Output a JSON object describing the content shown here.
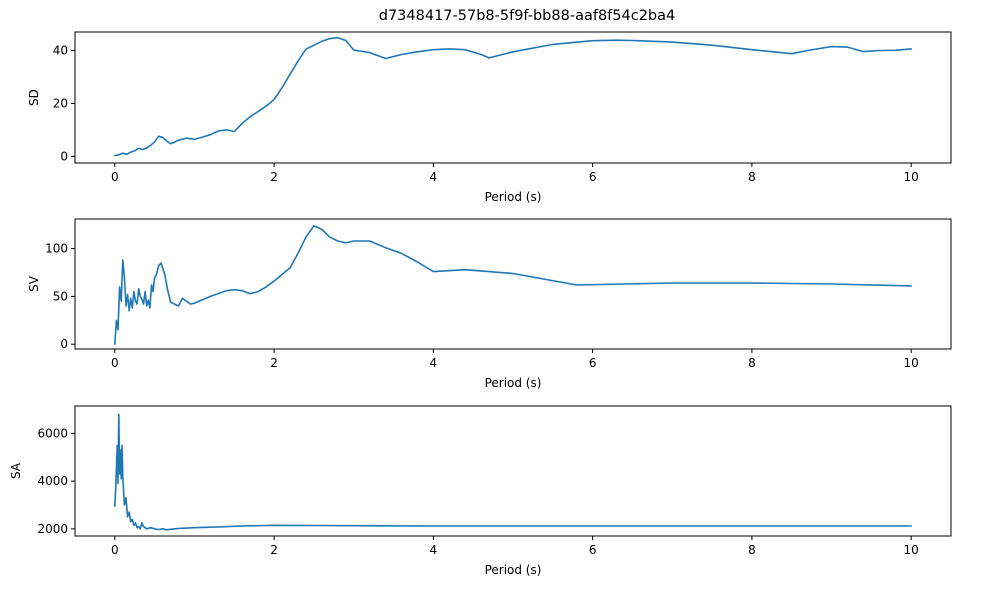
{
  "figure": {
    "title": "d7348417-57b8-5f9f-bb88-aaf8f54c2ba4"
  },
  "colors": {
    "line": "#1f77b4"
  },
  "chart_data": [
    {
      "type": "line",
      "ylabel": "SD",
      "xlabel": "Period (s)",
      "xlim": [
        -0.5,
        10.5
      ],
      "ylim": [
        -2.5,
        47
      ],
      "xticks": [
        0,
        2,
        4,
        6,
        8,
        10
      ],
      "yticks": [
        0,
        20,
        40
      ],
      "series": [
        {
          "x": [
            0,
            0.05,
            0.1,
            0.15,
            0.2,
            0.25,
            0.3,
            0.35,
            0.4,
            0.45,
            0.5,
            0.55,
            0.6,
            0.65,
            0.7,
            0.75,
            0.8,
            0.9,
            1.0,
            1.1,
            1.2,
            1.3,
            1.4,
            1.5,
            1.6,
            1.7,
            1.8,
            1.9,
            2.0,
            2.1,
            2.2,
            2.3,
            2.4,
            2.5,
            2.6,
            2.7,
            2.8,
            2.9,
            3.0,
            3.2,
            3.4,
            3.6,
            3.8,
            4.0,
            4.2,
            4.4,
            4.6,
            4.7,
            5.0,
            5.5,
            6.0,
            6.3,
            6.5,
            7.0,
            7.5,
            8.0,
            8.5,
            8.7,
            9.0,
            9.2,
            9.4,
            9.6,
            9.8,
            10.0
          ],
          "y": [
            0.3,
            0.6,
            1.2,
            0.8,
            1.6,
            2.1,
            3.0,
            2.6,
            3.2,
            4.2,
            5.5,
            7.6,
            7.2,
            5.8,
            4.8,
            5.4,
            6.1,
            6.9,
            6.4,
            7.3,
            8.2,
            9.6,
            10.0,
            9.4,
            12.5,
            15.0,
            17.0,
            19.0,
            21.5,
            26.0,
            31.0,
            36.0,
            40.5,
            42.0,
            43.5,
            44.5,
            44.8,
            43.8,
            40.2,
            39.2,
            37.0,
            38.5,
            39.5,
            40.3,
            40.6,
            40.3,
            38.5,
            37.2,
            39.5,
            42.3,
            43.7,
            43.9,
            43.8,
            43.2,
            42.0,
            40.3,
            38.8,
            40.0,
            41.5,
            41.3,
            39.6,
            40.0,
            40.1,
            40.6
          ]
        }
      ]
    },
    {
      "type": "line",
      "ylabel": "SV",
      "xlabel": "Period (s)",
      "xlim": [
        -0.5,
        10.5
      ],
      "ylim": [
        -5,
        131
      ],
      "xticks": [
        0,
        2,
        4,
        6,
        8,
        10
      ],
      "yticks": [
        0,
        50,
        100
      ],
      "series": [
        {
          "x": [
            0,
            0.02,
            0.04,
            0.06,
            0.08,
            0.1,
            0.12,
            0.14,
            0.16,
            0.18,
            0.2,
            0.22,
            0.24,
            0.26,
            0.28,
            0.3,
            0.32,
            0.34,
            0.36,
            0.38,
            0.4,
            0.42,
            0.44,
            0.46,
            0.48,
            0.5,
            0.52,
            0.55,
            0.58,
            0.6,
            0.63,
            0.66,
            0.7,
            0.75,
            0.8,
            0.85,
            0.9,
            0.95,
            1.0,
            1.2,
            1.4,
            1.5,
            1.6,
            1.7,
            1.8,
            1.9,
            2.0,
            2.2,
            2.3,
            2.4,
            2.5,
            2.6,
            2.7,
            2.8,
            2.9,
            3.0,
            3.2,
            3.4,
            3.6,
            3.8,
            4.0,
            4.4,
            5.0,
            5.8,
            7.0,
            8.0,
            9.0,
            10.0
          ],
          "y": [
            0,
            25,
            15,
            60,
            45,
            88,
            70,
            40,
            52,
            35,
            48,
            38,
            55,
            45,
            42,
            58,
            50,
            47,
            42,
            55,
            40,
            46,
            38,
            62,
            55,
            70,
            72,
            82,
            85,
            80,
            72,
            58,
            44,
            42,
            40,
            48,
            45,
            42,
            43,
            50,
            56,
            57,
            56,
            53,
            55,
            60,
            66,
            80,
            95,
            112,
            124,
            120,
            112,
            108,
            106,
            108,
            108,
            101,
            95,
            86,
            76,
            78,
            74,
            62,
            64,
            64,
            63,
            61
          ]
        }
      ]
    },
    {
      "type": "line",
      "ylabel": "SA",
      "xlabel": "Period (s)",
      "xlim": [
        -0.5,
        10.5
      ],
      "ylim": [
        1700,
        7150
      ],
      "xticks": [
        0,
        2,
        4,
        6,
        8,
        10
      ],
      "yticks": [
        2000,
        4000,
        6000
      ],
      "series": [
        {
          "x": [
            0,
            0.01,
            0.02,
            0.03,
            0.04,
            0.05,
            0.06,
            0.07,
            0.08,
            0.09,
            0.1,
            0.12,
            0.14,
            0.16,
            0.18,
            0.2,
            0.22,
            0.24,
            0.26,
            0.28,
            0.3,
            0.32,
            0.34,
            0.36,
            0.38,
            0.4,
            0.45,
            0.5,
            0.55,
            0.6,
            0.65,
            0.7,
            0.8,
            1.0,
            1.3,
            1.6,
            2.0,
            2.5,
            3.0,
            4.0,
            6.0,
            8.0,
            10.0
          ],
          "y": [
            2950,
            3600,
            4500,
            5500,
            3900,
            6800,
            4300,
            5300,
            4100,
            5500,
            4200,
            3000,
            3300,
            2500,
            2700,
            2300,
            2400,
            2150,
            2250,
            2050,
            2100,
            2000,
            2250,
            2100,
            2050,
            2000,
            2050,
            2000,
            1970,
            2000,
            1960,
            1980,
            2020,
            2050,
            2080,
            2120,
            2150,
            2140,
            2130,
            2120,
            2120,
            2120,
            2120
          ]
        }
      ]
    }
  ]
}
